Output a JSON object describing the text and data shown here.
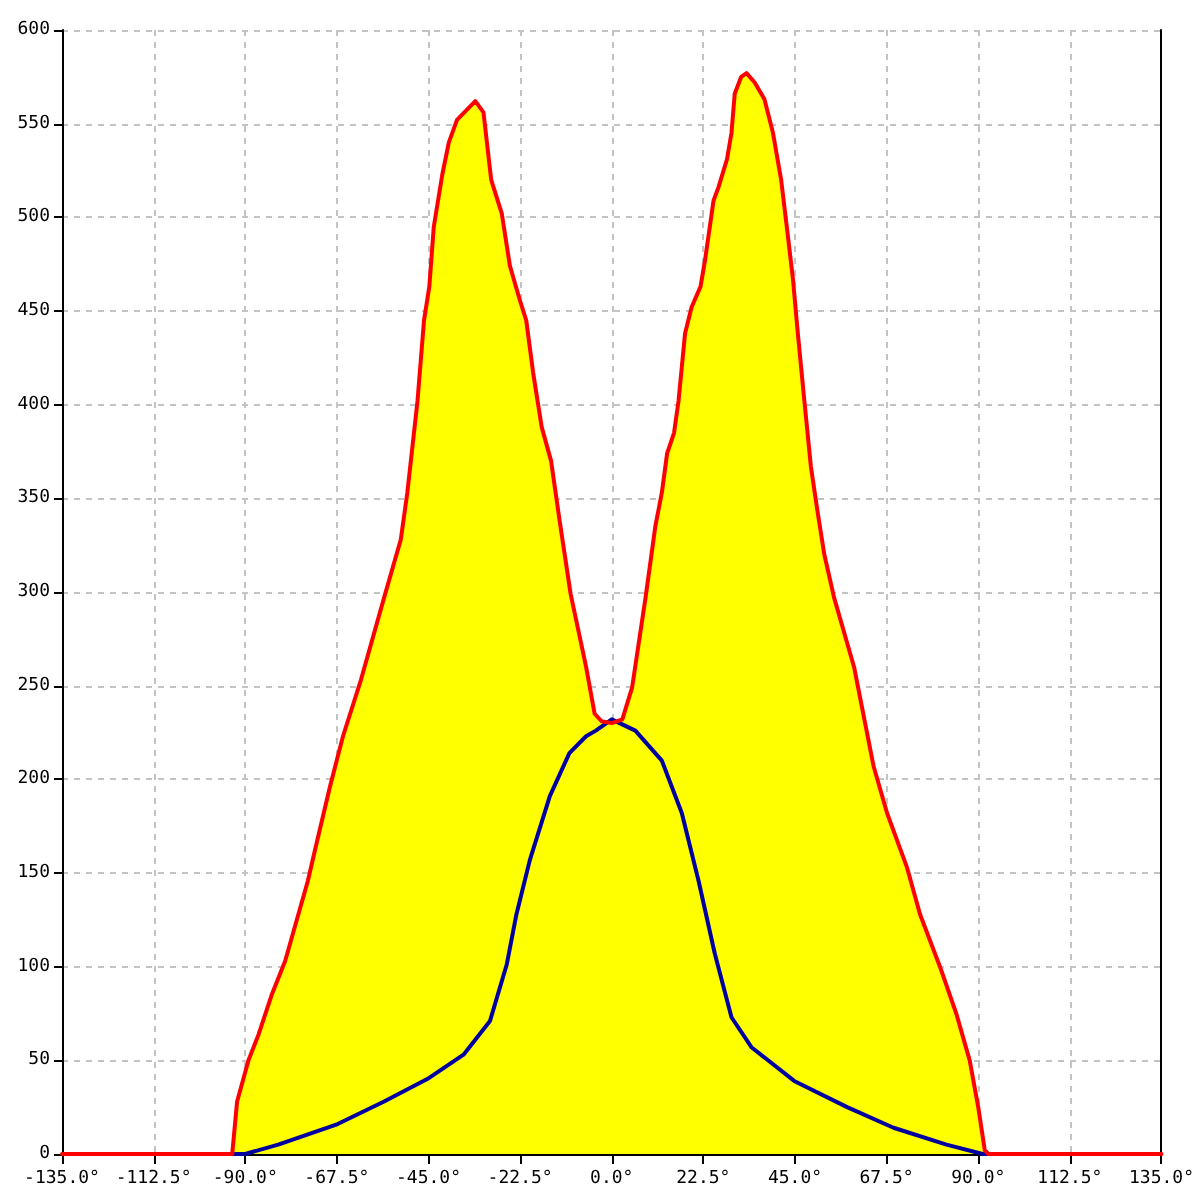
{
  "chart_data": {
    "type": "area",
    "xlim": [
      -135,
      135
    ],
    "xticks": [
      {
        "value": -135,
        "label": "-135.0°"
      },
      {
        "value": -112.5,
        "label": "-112.5°"
      },
      {
        "value": -90,
        "label": "-90.0°"
      },
      {
        "value": -67.5,
        "label": "-67.5°"
      },
      {
        "value": -45,
        "label": "-45.0°"
      },
      {
        "value": -22.5,
        "label": "-22.5°"
      },
      {
        "value": 0,
        "label": "0.0°"
      },
      {
        "value": 22.5,
        "label": "22.5°"
      },
      {
        "value": 45,
        "label": "45.0°"
      },
      {
        "value": 67.5,
        "label": "67.5°"
      },
      {
        "value": 90,
        "label": "90.0°"
      },
      {
        "value": 112.5,
        "label": "112.5°"
      },
      {
        "value": 135,
        "label": "135.0°"
      }
    ],
    "ylim": [
      0,
      600
    ],
    "yticks": [
      0,
      50,
      100,
      150,
      200,
      250,
      300,
      350,
      400,
      450,
      500,
      550,
      600
    ],
    "grid": true,
    "series": [
      {
        "color": "#ffff00",
        "x": [
          -93.2,
          -92,
          -89.2,
          -86.7,
          -83.5,
          -80.2,
          -74.6,
          -72.9,
          -69.2,
          -66,
          -61.6,
          -55.9,
          -51.8,
          -50.2,
          -47.7,
          -46.1,
          -44.8,
          -43.7,
          -41.6,
          -40,
          -38,
          -33.5,
          -31.5,
          -29.6,
          -27,
          -25,
          -22.6,
          -21,
          -19.3,
          -17.2,
          -14.9,
          -12.8,
          -10.1,
          -6.3,
          -4.2,
          -2.5,
          0,
          2.6,
          5,
          8.3,
          10.7,
          12.3,
          13.6,
          15.3,
          16.4,
          18,
          19.6,
          21.8,
          22.9,
          25,
          26.2,
          28.3,
          29.4,
          30.2,
          31.8,
          33.1,
          35.1,
          37.5,
          39.6,
          41.6,
          43.2,
          44.5,
          45.7,
          47.3,
          48.9,
          50.6,
          52.2,
          54.6,
          59.5,
          64.3,
          67.6,
          72.5,
          75.7,
          80.6,
          84.6,
          87.9,
          90,
          91.6,
          92.5
        ],
        "values": [
          0,
          28,
          50,
          64,
          85,
          103,
          146,
          162,
          196,
          223,
          253,
          297,
          328,
          353,
          402,
          445,
          463,
          495,
          523,
          540,
          552,
          562,
          556,
          520,
          502,
          474,
          456,
          445,
          417,
          388,
          370,
          338,
          299,
          260,
          235,
          231,
          230,
          232,
          249,
          297,
          335,
          353,
          374,
          385,
          402,
          438,
          452,
          463,
          477,
          509,
          516,
          531,
          545,
          566,
          575,
          577,
          572,
          563,
          545,
          520,
          491,
          467,
          438,
          402,
          367,
          342,
          320,
          297,
          260,
          207,
          182,
          153,
          128,
          100,
          75,
          50,
          25,
          2,
          0
        ]
      },
      {
        "type": "line",
        "color": "#0000a0",
        "x": [
          -100,
          -90,
          -81.9,
          -67.3,
          -55.9,
          -45.3,
          -36.4,
          -29.9,
          -25.8,
          -23.4,
          -20.1,
          -15.2,
          -10.4,
          -6.3,
          -3.9,
          0,
          5.8,
          12.3,
          17.2,
          21.3,
          25.3,
          29.4,
          34.3,
          44.8,
          57.8,
          69.2,
          82.2,
          91.1,
          100
        ],
        "values": [
          0,
          0,
          5,
          16,
          28,
          40,
          53,
          71,
          101,
          128,
          157,
          191,
          214,
          223,
          226,
          232,
          226,
          210,
          182,
          146,
          107,
          73,
          57,
          39,
          25,
          14,
          5,
          0,
          0
        ]
      },
      {
        "type": "line",
        "color": "#ff0000",
        "x": [
          -135,
          -93.2,
          -92,
          -89.2,
          -86.7,
          -83.5,
          -80.2,
          -74.6,
          -72.9,
          -69.2,
          -66,
          -61.6,
          -55.9,
          -51.8,
          -50.2,
          -47.7,
          -46.1,
          -44.8,
          -43.7,
          -41.6,
          -40,
          -38,
          -33.5,
          -31.5,
          -29.6,
          -27,
          -25,
          -22.6,
          -21,
          -19.3,
          -17.2,
          -14.9,
          -12.8,
          -10.1,
          -6.3,
          -4.2,
          -2.5,
          0,
          2.6,
          5,
          8.3,
          10.7,
          12.3,
          13.6,
          15.3,
          16.4,
          18,
          19.6,
          21.8,
          22.9,
          25,
          26.2,
          28.3,
          29.4,
          30.2,
          31.8,
          33.1,
          35.1,
          37.5,
          39.6,
          41.6,
          43.2,
          44.5,
          45.7,
          47.3,
          48.9,
          50.6,
          52.2,
          54.6,
          59.5,
          64.3,
          67.6,
          72.5,
          75.7,
          80.6,
          84.6,
          87.9,
          90,
          91.6,
          92.5,
          135
        ],
        "values": [
          0,
          0,
          28,
          50,
          64,
          85,
          103,
          146,
          162,
          196,
          223,
          253,
          297,
          328,
          353,
          402,
          445,
          463,
          495,
          523,
          540,
          552,
          562,
          556,
          520,
          502,
          474,
          456,
          445,
          417,
          388,
          370,
          338,
          299,
          260,
          235,
          231,
          230,
          232,
          249,
          297,
          335,
          353,
          374,
          385,
          402,
          438,
          452,
          463,
          477,
          509,
          516,
          531,
          545,
          566,
          575,
          577,
          572,
          563,
          545,
          520,
          491,
          467,
          438,
          402,
          367,
          342,
          320,
          297,
          260,
          207,
          182,
          153,
          128,
          100,
          75,
          50,
          25,
          2,
          0,
          0
        ]
      }
    ]
  }
}
